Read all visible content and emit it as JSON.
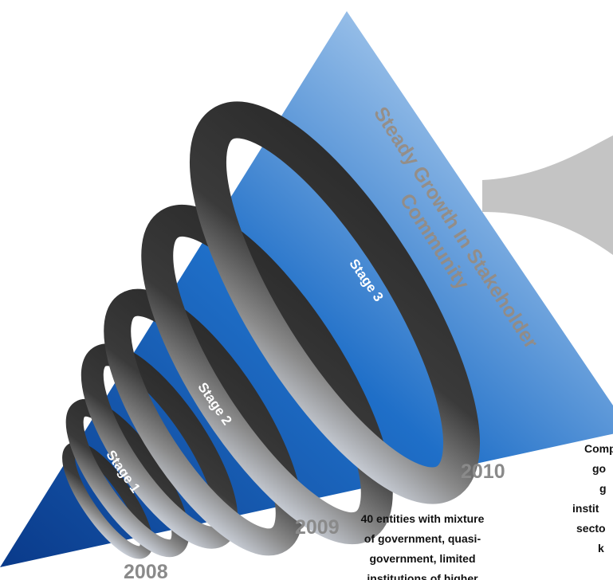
{
  "headline": [
    "Steady Growth In Stakeholder",
    "Community"
  ],
  "stages": [
    "Stage 1",
    "Stage 2",
    "Stage 3"
  ],
  "years": [
    "2008",
    "2009",
    "2010"
  ],
  "note_2009": [
    "40 entities with mixture",
    "of government, quasi-",
    "government, limited",
    "institutions of higher"
  ],
  "note_2010": [
    "Comp",
    "go",
    "g",
    "instit",
    "secto",
    "k"
  ]
}
